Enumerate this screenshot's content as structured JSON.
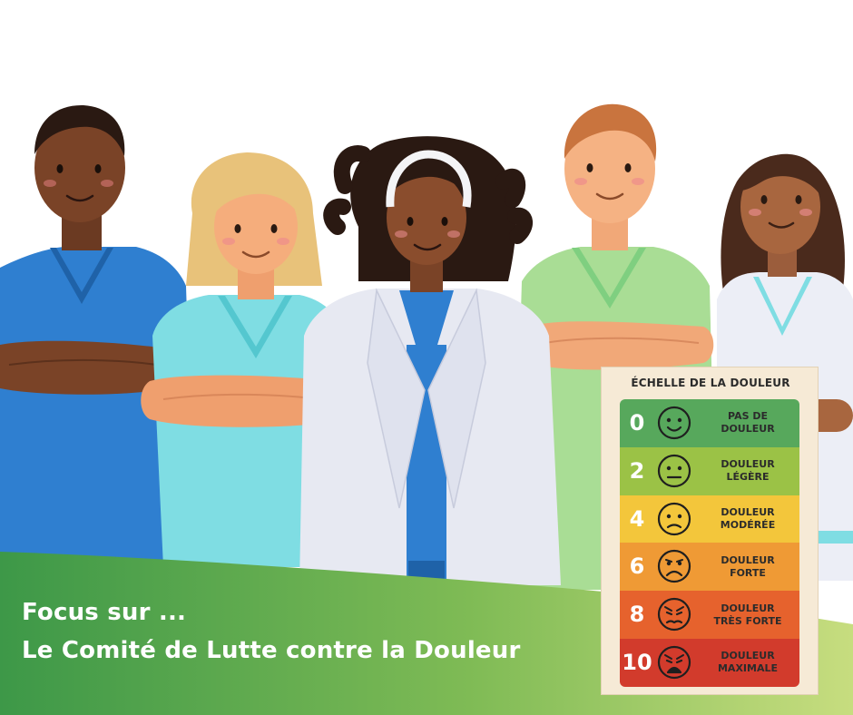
{
  "title": {
    "line1": "Focus sur ...",
    "line2": "Le Comité de Lutte contre la Douleur"
  },
  "pain_scale": {
    "title": "ÉCHELLE DE LA DOULEUR",
    "levels": [
      {
        "value": "0",
        "label": "PAS DE\nDOULEUR",
        "color": "#57a85c",
        "face": "smile"
      },
      {
        "value": "2",
        "label": "DOULEUR\nLÉGÈRE",
        "color": "#9bc246",
        "face": "neutral"
      },
      {
        "value": "4",
        "label": "DOULEUR\nMODÉRÉE",
        "color": "#f3c63b",
        "face": "sad"
      },
      {
        "value": "6",
        "label": "DOULEUR\nFORTE",
        "color": "#ef9a35",
        "face": "sadder"
      },
      {
        "value": "8",
        "label": "DOULEUR\nTRÈS FORTE",
        "color": "#e6622d",
        "face": "pained"
      },
      {
        "value": "10",
        "label": "DOULEUR\nMAXIMALE",
        "color": "#d23b2c",
        "face": "crying"
      }
    ]
  },
  "colors": {
    "banner_dark": "#3d9848",
    "banner_light": "#c7dd7f",
    "scrub_blue": "#2f7fd0",
    "scrub_cyan": "#7fdde3",
    "scrub_green": "#a9dd95",
    "lab_coat": "#e7e9f2"
  }
}
